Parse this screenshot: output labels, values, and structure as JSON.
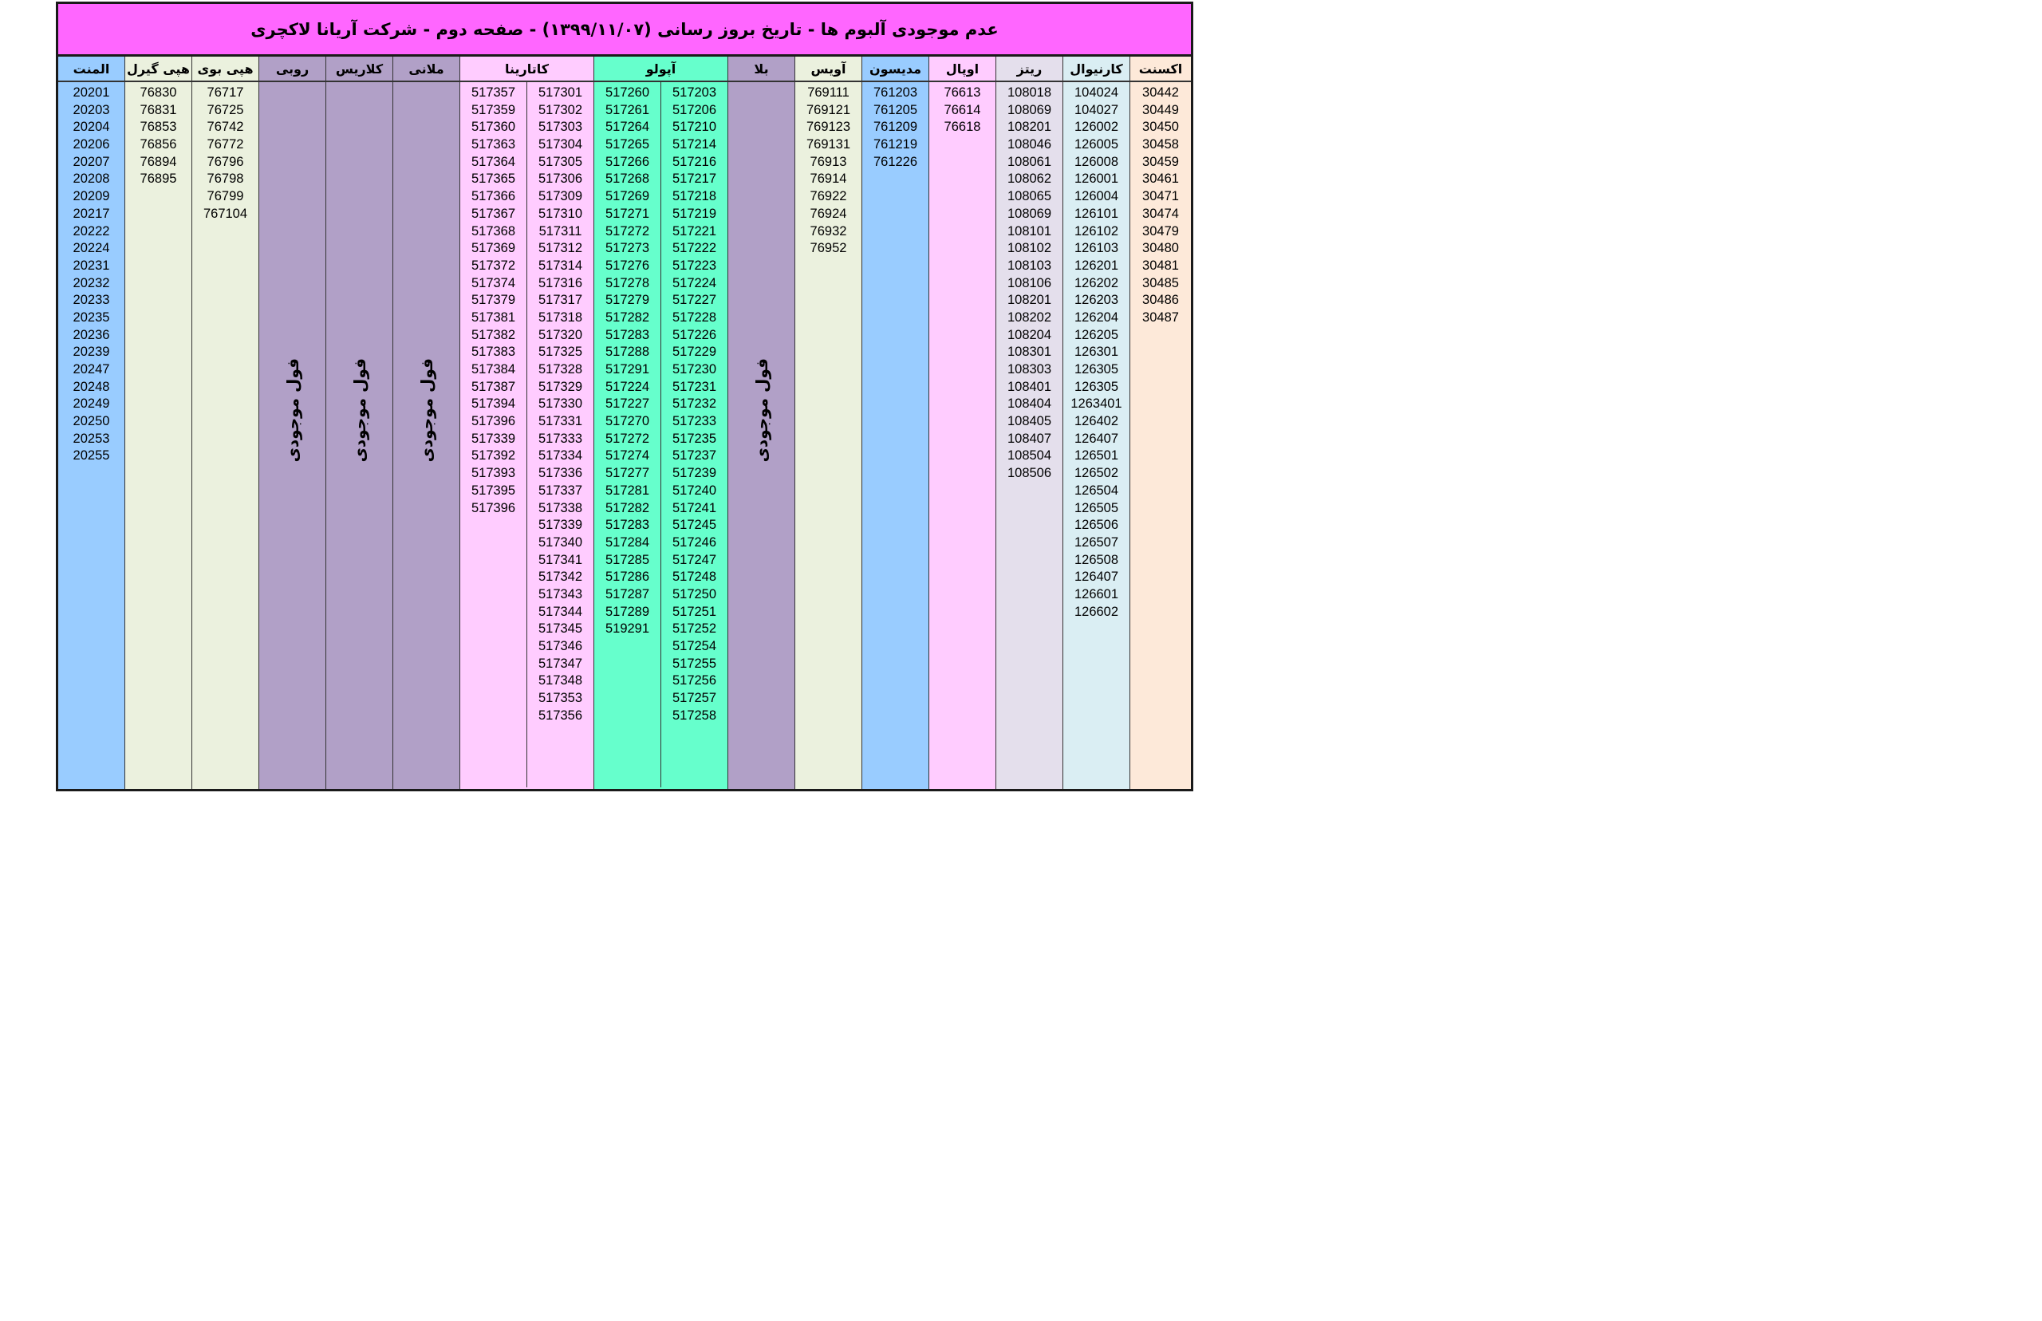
{
  "header": {
    "title": "عدم موجودی آلبوم ها   -   تاریخ بروز رسانی (۱۳۹۹/۱۱/۰۷)   -  صفحه دوم   - شرکت آریانا لاکچری"
  },
  "colors": {
    "title_bg": "#ff66ff",
    "olement": "#99ccff",
    "happy_girl": "#ebf1de",
    "happy_boy": "#ebf1de",
    "full_stock_purple": "#b1a0c7",
    "katarina": "#ffccff",
    "apollo": "#66ffcc",
    "avis": "#ebf1de",
    "madison": "#99ccff",
    "opal": "#ffccff",
    "ritz": "#e4dfec",
    "carnival": "#daeef3",
    "accent": "#fde9d9"
  },
  "columns": [
    {
      "id": "olement",
      "name": "المنت",
      "color": "#99ccff",
      "sub": [
        [
          "20201",
          "20203",
          "20204",
          "20206",
          "20207",
          "20208",
          "20209",
          "20217",
          "20222",
          "20224",
          "20231",
          "20232",
          "20233",
          "20235",
          "20236",
          "20239",
          "20247",
          "20248",
          "20249",
          "20250",
          "20253",
          "20255"
        ]
      ]
    },
    {
      "id": "happy-girl",
      "name": "هپی گیرل",
      "color": "#ebf1de",
      "sub": [
        [
          "76830",
          "76831",
          "76853",
          "76856",
          "76894",
          "76895"
        ]
      ]
    },
    {
      "id": "happy-boy",
      "name": "هپی بوی",
      "color": "#ebf1de",
      "sub": [
        [
          "76717",
          "76725",
          "76742",
          "76772",
          "76796",
          "76798",
          "76799",
          "767104"
        ]
      ]
    },
    {
      "id": "ruby",
      "name": "روبی",
      "color": "#b1a0c7",
      "note": "فول موجودی",
      "sub": []
    },
    {
      "id": "clarice",
      "name": "کلاریس",
      "color": "#b1a0c7",
      "note": "فول موجودی",
      "sub": []
    },
    {
      "id": "melanie",
      "name": "ملانی",
      "color": "#b1a0c7",
      "note": "فول موجودی",
      "sub": []
    },
    {
      "id": "katarina",
      "name": "کاتارینا",
      "color": "#ffccff",
      "sub": [
        [
          "517301",
          "517302",
          "517303",
          "517304",
          "517305",
          "517306",
          "517309",
          "517310",
          "517311",
          "517312",
          "517314",
          "517316",
          "517317",
          "517318",
          "517320",
          "517325",
          "517328",
          "517329",
          "517330",
          "517331",
          "517333",
          "517334",
          "517336",
          "517337",
          "517338",
          "517339",
          "517340",
          "517341",
          "517342",
          "517343",
          "517344",
          "517345",
          "517346",
          "517347",
          "517348",
          "517353",
          "517356"
        ],
        [
          "517357",
          "517359",
          "517360",
          "517363",
          "517364",
          "517365",
          "517366",
          "517367",
          "517368",
          "517369",
          "517372",
          "517374",
          "517379",
          "517381",
          "517382",
          "517383",
          "517384",
          "517387",
          "517394",
          "517396",
          "517339",
          "517392",
          "517393",
          "517395",
          "517396"
        ]
      ]
    },
    {
      "id": "apollo",
      "name": "آپولو",
      "color": "#66ffcc",
      "sub": [
        [
          "517203",
          "517206",
          "517210",
          "517214",
          "517216",
          "517217",
          "517218",
          "517219",
          "517221",
          "517222",
          "517223",
          "517224",
          "517227",
          "517228",
          "517226",
          "517229",
          "517230",
          "517231",
          "517232",
          "517233",
          "517235",
          "517237",
          "517239",
          "517240",
          "517241",
          "517245",
          "517246",
          "517247",
          "517248",
          "517250",
          "517251",
          "517252",
          "517254",
          "517255",
          "517256",
          "517257",
          "517258"
        ],
        [
          "517260",
          "517261",
          "517264",
          "517265",
          "517266",
          "517268",
          "517269",
          "517271",
          "517272",
          "517273",
          "517276",
          "517278",
          "517279",
          "517282",
          "517283",
          "517288",
          "517291",
          "517224",
          "517227",
          "517270",
          "517272",
          "517274",
          "517277",
          "517281",
          "517282",
          "517283",
          "517284",
          "517285",
          "517286",
          "517287",
          "517289",
          "519291"
        ]
      ]
    },
    {
      "id": "bella",
      "name": "بلا",
      "color": "#b1a0c7",
      "note": "فول موجودی",
      "sub": []
    },
    {
      "id": "avis",
      "name": "آویس",
      "color": "#ebf1de",
      "sub": [
        [
          "769111",
          "769121",
          "769123",
          "769131",
          "76913",
          "76914",
          "76922",
          "76924",
          "76932",
          "76952"
        ]
      ]
    },
    {
      "id": "madison",
      "name": "مدیسون",
      "color": "#99ccff",
      "sub": [
        [
          "761203",
          "761205",
          "761209",
          "761219",
          "761226"
        ]
      ]
    },
    {
      "id": "opal",
      "name": "اوپال",
      "color": "#ffccff",
      "sub": [
        [
          "76613",
          "76614",
          "76618"
        ]
      ]
    },
    {
      "id": "ritz",
      "name": "ریتز",
      "color": "#e4dfec",
      "sub": [
        [
          "108018",
          "108069",
          "108201",
          "108046",
          "108061",
          "108062",
          "108065",
          "108069",
          "108101",
          "108102",
          "108103",
          "108106",
          "108201",
          "108202",
          "108204",
          "108301",
          "108303",
          "108401",
          "108404",
          "108405",
          "108407",
          "108504",
          "108506"
        ]
      ]
    },
    {
      "id": "carnival",
      "name": "کارنیوال",
      "color": "#daeef3",
      "sub": [
        [
          "104024",
          "104027",
          "126002",
          "126005",
          "126008",
          "126001",
          "126004",
          "126101",
          "126102",
          "126103",
          "126201",
          "126202",
          "126203",
          "126204",
          "126205",
          "126301",
          "126305",
          "126305",
          "1263401",
          "126402",
          "126407",
          "126501",
          "126502",
          "126504",
          "126505",
          "126506",
          "126507",
          "126508",
          "126407",
          "126601",
          "126602"
        ]
      ]
    },
    {
      "id": "accent",
      "name": "اکسنت",
      "color": "#fde9d9",
      "sub": [
        [
          "30442",
          "30449",
          "30450",
          "30458",
          "30459",
          "30461",
          "30471",
          "30474",
          "30479",
          "30480",
          "30481",
          "30485",
          "30486",
          "30487"
        ]
      ]
    }
  ]
}
